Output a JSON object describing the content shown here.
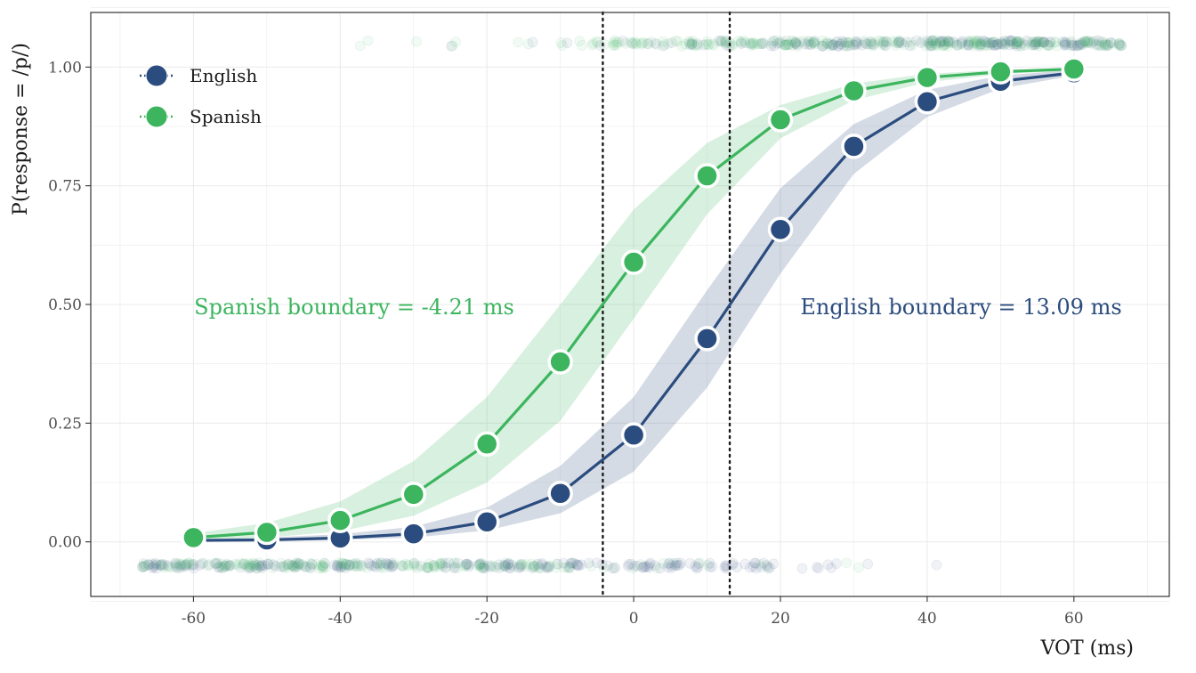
{
  "chart_data": {
    "type": "line",
    "xlabel": "VOT (ms)",
    "ylabel": "P(response = /p/)",
    "xlim": [
      -74,
      73
    ],
    "ylim": [
      -0.115,
      1.115
    ],
    "x_ticks": [
      -60,
      -40,
      -20,
      0,
      20,
      40,
      60
    ],
    "x_tick_labels": [
      "-60",
      "-40",
      "-20",
      "0",
      "20",
      "40",
      "60"
    ],
    "y_ticks": [
      0,
      0.25,
      0.5,
      0.75,
      1.0
    ],
    "y_tick_labels": [
      "0.00",
      "0.25",
      "0.50",
      "0.75",
      "1.00"
    ],
    "grid": true,
    "legend_position": "top-left",
    "x": [
      -60,
      -50,
      -40,
      -30,
      -20,
      -10,
      0,
      10,
      20,
      30,
      40,
      50,
      60
    ],
    "series": [
      {
        "name": "English",
        "color": "#2b4c7e",
        "values": [
          0.003,
          0.004,
          0.008,
          0.017,
          0.042,
          0.102,
          0.225,
          0.428,
          0.658,
          0.833,
          0.927,
          0.97,
          0.988
        ],
        "ci_lower": [
          0.001,
          0.002,
          0.004,
          0.009,
          0.024,
          0.06,
          0.148,
          0.325,
          0.565,
          0.775,
          0.895,
          0.955,
          0.982
        ],
        "ci_upper": [
          0.006,
          0.009,
          0.016,
          0.032,
          0.072,
          0.16,
          0.305,
          0.53,
          0.745,
          0.88,
          0.952,
          0.982,
          0.994
        ]
      },
      {
        "name": "Spanish",
        "color": "#3cb55e",
        "values": [
          0.009,
          0.02,
          0.045,
          0.1,
          0.206,
          0.379,
          0.589,
          0.771,
          0.889,
          0.95,
          0.978,
          0.99,
          0.996
        ],
        "ci_lower": [
          0.004,
          0.009,
          0.022,
          0.055,
          0.125,
          0.255,
          0.47,
          0.69,
          0.85,
          0.93,
          0.968,
          0.985,
          0.993
        ],
        "ci_upper": [
          0.018,
          0.04,
          0.085,
          0.17,
          0.305,
          0.5,
          0.7,
          0.84,
          0.92,
          0.965,
          0.986,
          0.994,
          0.998
        ]
      }
    ],
    "boundaries": [
      {
        "label": "Spanish boundary = -4.21 ms",
        "x": -4.21,
        "color": "#3cb55e"
      },
      {
        "label": "English boundary = 13.09 ms",
        "x": 13.09,
        "color": "#2b4c7e"
      }
    ],
    "raw_response_rows": {
      "p_response_y": 1.05,
      "b_response_y": -0.05,
      "x_range": [
        -67,
        67
      ]
    }
  }
}
